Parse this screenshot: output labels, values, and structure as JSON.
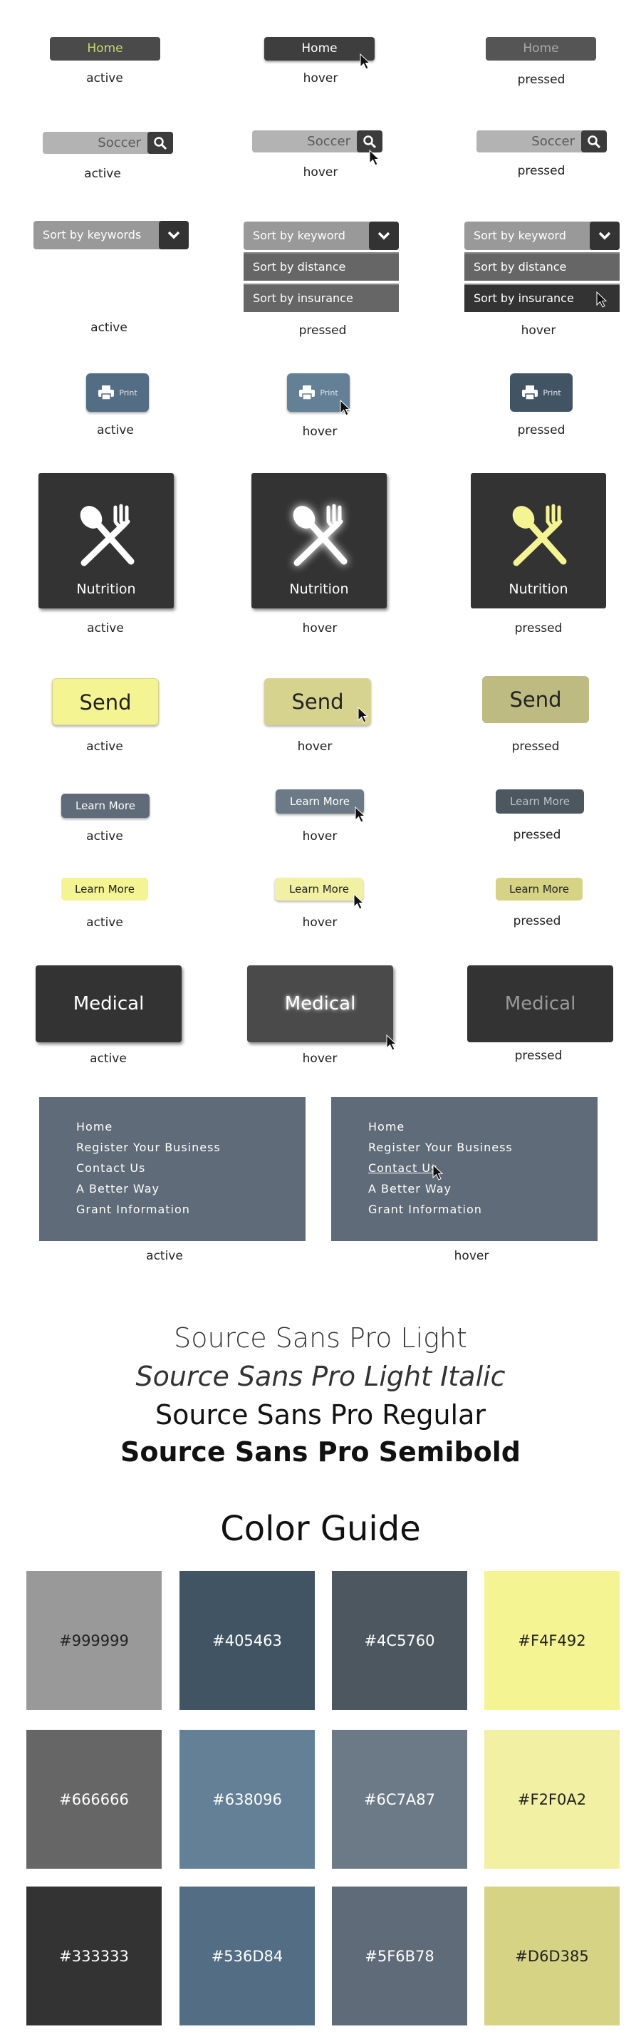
{
  "states": {
    "active": "active",
    "hover": "hover",
    "pressed": "pressed"
  },
  "nav": {
    "label": "Home",
    "active_text_color": "#c9d86a"
  },
  "search": {
    "label": "Soccer"
  },
  "dropdown": {
    "active_label": "Sort by keywords",
    "label": "Sort by keyword",
    "options": [
      "Sort by distance",
      "Sort by insurance"
    ]
  },
  "print": {
    "label": "Print"
  },
  "nutrition": {
    "label": "Nutrition"
  },
  "send": {
    "label": "Send"
  },
  "learn": {
    "label": "Learn More"
  },
  "medical": {
    "label": "Medical"
  },
  "menu": {
    "items": [
      "Home",
      "Register Your Business",
      "Contact Us",
      "A Better Way",
      "Grant Information"
    ]
  },
  "fonts": [
    "Source Sans Pro Light",
    "Source Sans Pro Light Italic",
    "Source Sans Pro Regular",
    "Source Sans Pro Semibold"
  ],
  "color_guide": {
    "title": "Color Guide",
    "swatches": [
      {
        "hex": "#999999",
        "label": "#999999"
      },
      {
        "hex": "#405463",
        "label": "#405463"
      },
      {
        "hex": "#4C5760",
        "label": "#4C5760"
      },
      {
        "hex": "#F4F492",
        "label": "#F4F492"
      },
      {
        "hex": "#666666",
        "label": "#666666"
      },
      {
        "hex": "#638096",
        "label": "#638096"
      },
      {
        "hex": "#6C7A87",
        "label": "#6C7A87"
      },
      {
        "hex": "#F2F0A2",
        "label": "#F2F0A2"
      },
      {
        "hex": "#333333",
        "label": "#333333"
      },
      {
        "hex": "#536D84",
        "label": "#536D84"
      },
      {
        "hex": "#5F6B78",
        "label": "#5F6B78"
      },
      {
        "hex": "#D6D385",
        "label": "#D6D385"
      }
    ]
  }
}
